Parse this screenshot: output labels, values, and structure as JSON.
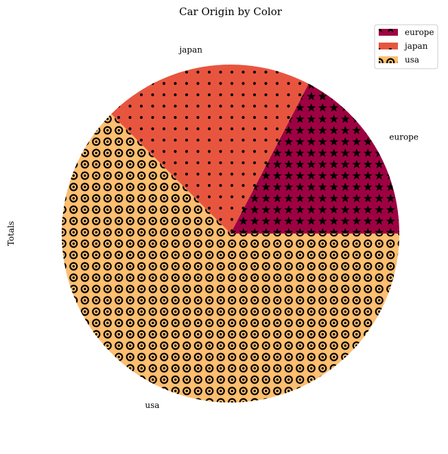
{
  "chart_data": {
    "type": "pie",
    "title": "Car Origin by Color",
    "ylabel": "Totals",
    "categories": [
      "europe",
      "japan",
      "usa"
    ],
    "values": [
      68,
      79,
      245
    ],
    "colors": [
      "#9e0142",
      "#e8553f",
      "#fdbe6f"
    ],
    "hatches": [
      "star",
      "dot",
      "ring"
    ],
    "start_angle_deg": 0,
    "direction": "counterclockwise",
    "legend": {
      "placement": "top-right",
      "entries": [
        "europe",
        "japan",
        "usa"
      ]
    }
  }
}
